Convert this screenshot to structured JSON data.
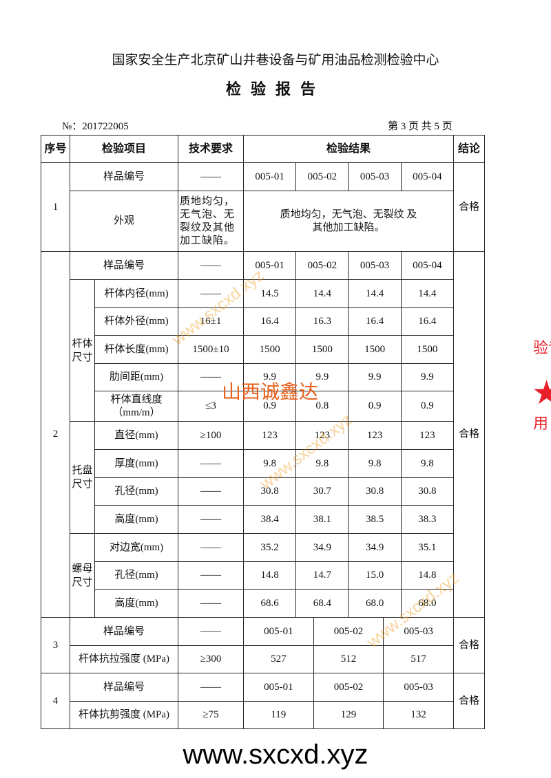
{
  "header": {
    "organization": "国家安全生产北京矿山井巷设备与矿用油品检测检验中心",
    "title": "检验报告",
    "report_no": "№：201722005",
    "page_info": "第 3 页  共 5 页"
  },
  "table": {
    "headers": [
      "序号",
      "检验项目",
      "技术要求",
      "检验结果",
      "结论"
    ],
    "sections": [
      {
        "no": "1",
        "conclusion": "合格",
        "sample": {
          "item": "样品编号",
          "req": "——",
          "results": [
            "005-01",
            "005-02",
            "005-03",
            "005-04"
          ]
        },
        "appearance": {
          "item": "外观",
          "req": "质地均匀，无气泡、无裂纹及其他加工缺陷。",
          "result": "质地均匀，无气泡、无裂纹 及其他加工缺陷。"
        }
      },
      {
        "no": "2",
        "conclusion": "合格",
        "sample": {
          "item": "样品编号",
          "req": "——",
          "results": [
            "005-01",
            "005-02",
            "005-03",
            "005-04"
          ]
        },
        "groups": [
          {
            "name": "杆体尺寸",
            "rows": [
              {
                "item": "杆体内径(mm)",
                "req": "——",
                "results": [
                  "14.5",
                  "14.4",
                  "14.4",
                  "14.4"
                ]
              },
              {
                "item": "杆体外径(mm)",
                "req": "16±1",
                "results": [
                  "16.4",
                  "16.3",
                  "16.4",
                  "16.4"
                ]
              },
              {
                "item": "杆体长度(mm)",
                "req": "1500±10",
                "results": [
                  "1500",
                  "1500",
                  "1500",
                  "1500"
                ]
              },
              {
                "item": "肋间距(mm)",
                "req": "——",
                "results": [
                  "9.9",
                  "9.9",
                  "9.9",
                  "9.9"
                ]
              },
              {
                "item": "杆体直线度（mm/m）",
                "req": "≤3",
                "results": [
                  "0.9",
                  "0.8",
                  "0.9",
                  "0.9"
                ]
              }
            ]
          },
          {
            "name": "托盘尺寸",
            "rows": [
              {
                "item": "直径(mm)",
                "req": "≥100",
                "results": [
                  "123",
                  "123",
                  "123",
                  "123"
                ]
              },
              {
                "item": "厚度(mm)",
                "req": "——",
                "results": [
                  "9.8",
                  "9.8",
                  "9.8",
                  "9.8"
                ]
              },
              {
                "item": "孔径(mm)",
                "req": "——",
                "results": [
                  "30.8",
                  "30.7",
                  "30.8",
                  "30.8"
                ]
              },
              {
                "item": "高度(mm)",
                "req": "——",
                "results": [
                  "38.4",
                  "38.1",
                  "38.5",
                  "38.3"
                ]
              }
            ]
          },
          {
            "name": "螺母尺寸",
            "rows": [
              {
                "item": "对边宽(mm)",
                "req": "——",
                "results": [
                  "35.2",
                  "34.9",
                  "34.9",
                  "35.1"
                ]
              },
              {
                "item": "孔径(mm)",
                "req": "——",
                "results": [
                  "14.8",
                  "14.7",
                  "15.0",
                  "14.8"
                ]
              },
              {
                "item": "高度(mm)",
                "req": "——",
                "results": [
                  "68.6",
                  "68.4",
                  "68.0",
                  "68.0"
                ]
              }
            ]
          }
        ]
      },
      {
        "no": "3",
        "conclusion": "合格",
        "sample": {
          "item": "样品编号",
          "req": "——",
          "results": [
            "005-01",
            "005-02",
            "005-03"
          ]
        },
        "test": {
          "item": "杆体抗拉强度 (MPa)",
          "req": "≥300",
          "results": [
            "527",
            "512",
            "517"
          ]
        }
      },
      {
        "no": "4",
        "conclusion": "合格",
        "sample": {
          "item": "样品编号",
          "req": "——",
          "results": [
            "005-01",
            "005-02",
            "005-03"
          ]
        },
        "test": {
          "item": "杆体抗剪强度 (MPa)",
          "req": "≥75",
          "results": [
            "119",
            "129",
            "132"
          ]
        }
      }
    ]
  },
  "watermarks": {
    "site": "www.sxcxd.xyz",
    "brand": "山西诚鑫达",
    "footer": "www.sxcxd.xyz"
  },
  "stamp": {
    "text_top": "验专",
    "text_bottom": "用"
  },
  "colors": {
    "stamp": "#e8202a",
    "watermark": "#e8601c"
  }
}
